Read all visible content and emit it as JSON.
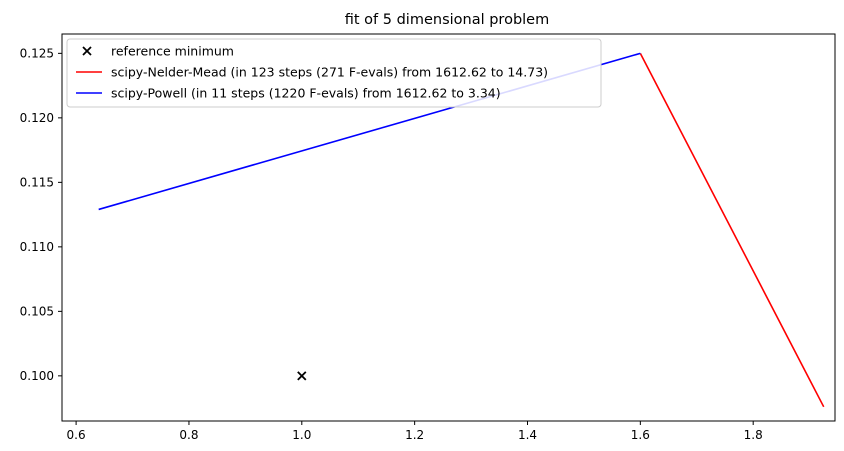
{
  "chart_data": {
    "type": "line",
    "title": "fit of 5 dimensional problem",
    "xlabel": "",
    "ylabel": "",
    "xlim": [
      0.575,
      1.945
    ],
    "ylim": [
      0.0965,
      0.1265
    ],
    "x_ticks": [
      0.6,
      0.8,
      1.0,
      1.2,
      1.4,
      1.6,
      1.8
    ],
    "x_tick_labels": [
      "0.6",
      "0.8",
      "1.0",
      "1.2",
      "1.4",
      "1.6",
      "1.8"
    ],
    "y_ticks": [
      0.1,
      0.105,
      0.11,
      0.115,
      0.12,
      0.125
    ],
    "y_tick_labels": [
      "0.100",
      "0.105",
      "0.110",
      "0.115",
      "0.120",
      "0.125"
    ],
    "grid": false,
    "legend_position": "top-left",
    "series": [
      {
        "name": "reference minimum",
        "kind": "scatter",
        "marker": "x",
        "color": "#000000",
        "points": [
          [
            1.0,
            0.1
          ]
        ]
      },
      {
        "name": "scipy-Nelder-Mead (in 123 steps (271 F-evals) from 1612.62 to 14.73)",
        "kind": "line",
        "color": "#ff0000",
        "points": [
          [
            1.6,
            0.125
          ],
          [
            1.925,
            0.0976
          ]
        ]
      },
      {
        "name": "scipy-Powell (in 11 steps (1220 F-evals) from 1612.62 to 3.34)",
        "kind": "line",
        "color": "#0000ff",
        "points": [
          [
            0.64,
            0.1129
          ],
          [
            1.6,
            0.125
          ]
        ]
      }
    ]
  }
}
